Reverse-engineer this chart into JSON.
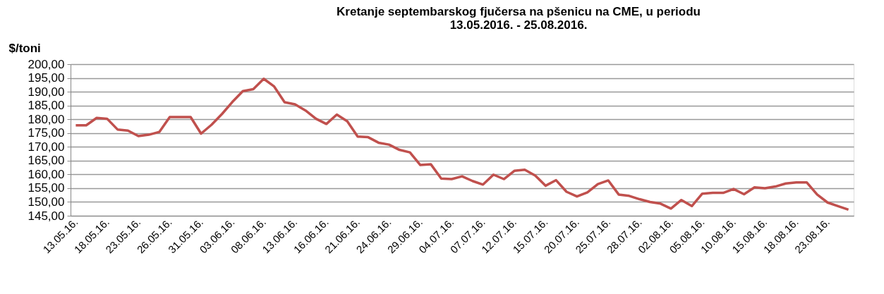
{
  "chart_data": {
    "type": "line",
    "title": [
      "Kretanje septembarskog fjučersa na  pšenicu na CME, u periodu",
      "13.05.2016. - 25.08.2016."
    ],
    "ylabel": "$/toni",
    "categories": [
      "13.05.16.",
      null,
      null,
      "18.05.16.",
      null,
      null,
      "23.05.16.",
      null,
      null,
      "26.05.16.",
      null,
      null,
      "31.05.16.",
      null,
      null,
      "03.06.16.",
      null,
      null,
      "08.06.16.",
      null,
      null,
      "13.06.16.",
      null,
      null,
      "16.06.16.",
      null,
      null,
      "21.06.16.",
      null,
      null,
      "24.06.16.",
      null,
      null,
      "29.06.16.",
      null,
      null,
      "04.07.16.",
      null,
      null,
      "07.07.16.",
      null,
      null,
      "12.07.16.",
      null,
      null,
      "15.07.16.",
      null,
      null,
      "20.07.16.",
      null,
      null,
      "25.07.16.",
      null,
      null,
      "28.07.16.",
      null,
      null,
      "02.08.16.",
      null,
      null,
      "05.08.16.",
      null,
      null,
      "10.08.16.",
      null,
      null,
      "15.08.16.",
      null,
      null,
      "18.08.16.",
      null,
      null,
      "23.08.16.",
      null,
      null
    ],
    "series": [
      {
        "color": "#c0504d",
        "values": [
          177.8,
          177.8,
          180.5,
          180.2,
          176.3,
          175.9,
          173.9,
          174.4,
          175.4,
          180.8,
          180.8,
          180.8,
          174.8,
          178.0,
          181.9,
          186.3,
          190.2,
          190.9,
          194.7,
          191.9,
          186.2,
          185.4,
          183.2,
          180.2,
          178.3,
          181.7,
          179.3,
          173.7,
          173.5,
          171.5,
          170.8,
          168.9,
          168.0,
          163.4,
          163.7,
          158.5,
          158.3,
          159.3,
          157.6,
          156.3,
          159.9,
          158.3,
          161.3,
          161.7,
          159.6,
          155.9,
          157.9,
          153.7,
          152.0,
          153.5,
          156.5,
          157.8,
          152.7,
          152.2,
          151.0,
          150.0,
          149.4,
          147.6,
          150.7,
          148.5,
          153.0,
          153.3,
          153.3,
          154.7,
          152.8,
          155.3,
          155.0,
          155.6,
          156.7,
          157.1,
          157.1,
          152.7,
          149.8,
          148.5,
          147.2
        ]
      }
    ],
    "ylim": [
      145,
      200
    ],
    "yticks": [
      {
        "value": 145,
        "label": "145,00"
      },
      {
        "value": 150,
        "label": "150,00"
      },
      {
        "value": 155,
        "label": "155,00"
      },
      {
        "value": 160,
        "label": "160,00"
      },
      {
        "value": 165,
        "label": "165,00"
      },
      {
        "value": 170,
        "label": "170,00"
      },
      {
        "value": 175,
        "label": "175,00"
      },
      {
        "value": 180,
        "label": "180,00"
      },
      {
        "value": 185,
        "label": "185,00"
      },
      {
        "value": 190,
        "label": "190,00"
      },
      {
        "value": 195,
        "label": "195,00"
      },
      {
        "value": 200,
        "label": "200,00"
      }
    ],
    "grid": "y",
    "legend": false,
    "marker": "none",
    "line_style": "solid"
  }
}
